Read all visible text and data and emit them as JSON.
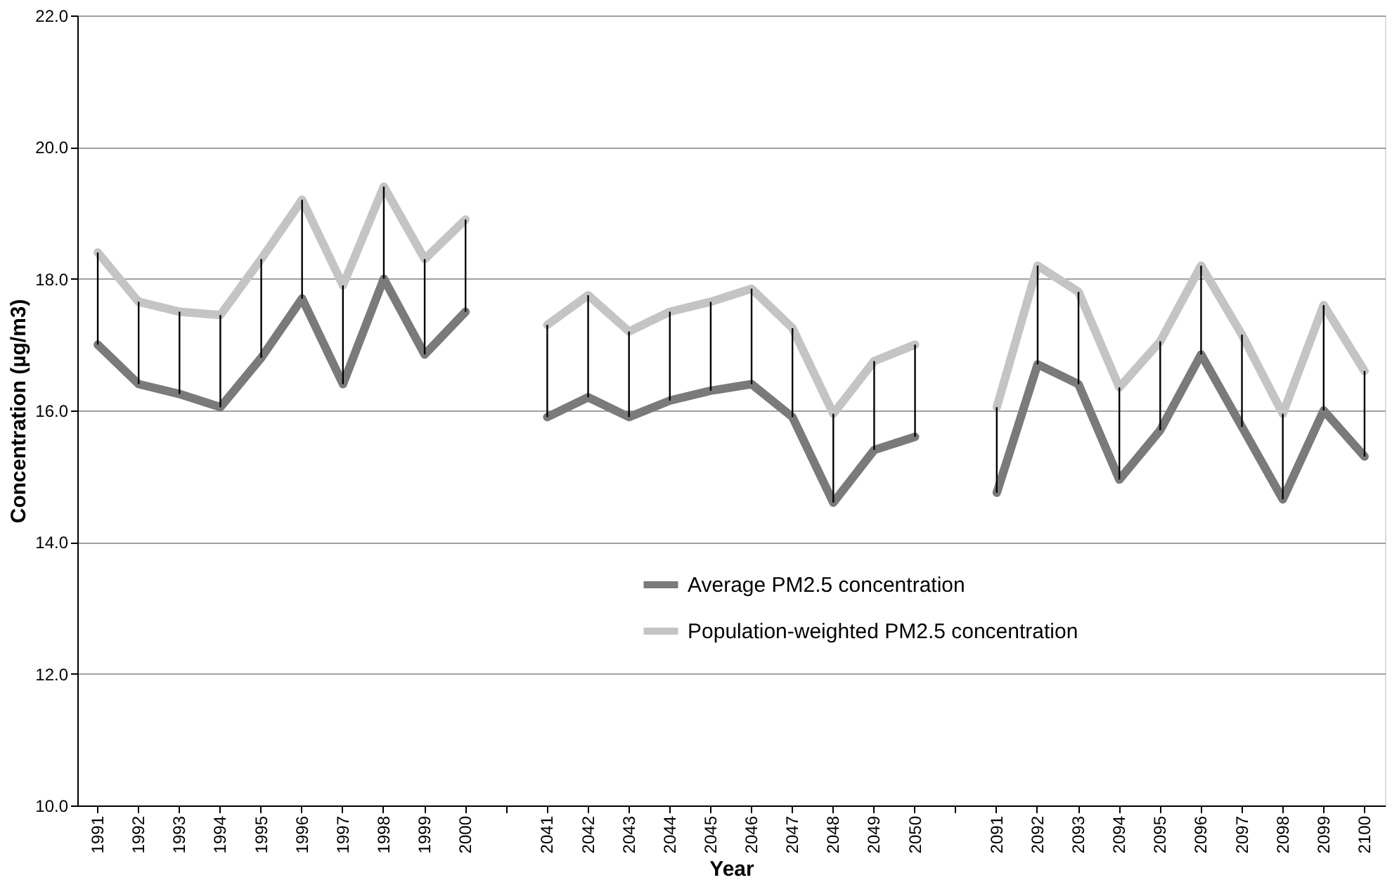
{
  "chart_data": {
    "type": "line",
    "xlabel": "Year",
    "ylabel": "Concentration (µg/m3)",
    "categories": [
      "1991",
      "1992",
      "1993",
      "1994",
      "1995",
      "1996",
      "1997",
      "1998",
      "1999",
      "2000",
      null,
      "2041",
      "2042",
      "2043",
      "2044",
      "2045",
      "2046",
      "2047",
      "2048",
      "2049",
      "2050",
      null,
      "2091",
      "2092",
      "2093",
      "2094",
      "2095",
      "2096",
      "2097",
      "2098",
      "2099",
      "2100"
    ],
    "series": [
      {
        "name": "Average PM2.5 concentration",
        "color": "#7a7a7a",
        "values": [
          17.0,
          16.4,
          16.25,
          16.05,
          16.8,
          17.7,
          16.4,
          18.0,
          16.85,
          17.5,
          null,
          15.9,
          16.2,
          15.9,
          16.15,
          16.3,
          16.4,
          15.9,
          14.6,
          15.4,
          15.6,
          null,
          14.75,
          16.7,
          16.4,
          14.95,
          15.7,
          16.85,
          15.75,
          14.65,
          16.0,
          15.3
        ]
      },
      {
        "name": "Population-weighted PM2.5 concentration",
        "color": "#c3c4c3",
        "values": [
          18.4,
          17.65,
          17.5,
          17.45,
          18.3,
          19.2,
          17.9,
          19.4,
          18.3,
          18.9,
          null,
          17.3,
          17.75,
          17.2,
          17.5,
          17.65,
          17.85,
          17.25,
          15.95,
          16.75,
          17.0,
          null,
          16.05,
          18.2,
          17.8,
          16.35,
          17.05,
          18.2,
          17.15,
          15.95,
          17.6,
          16.6
        ],
        "errors": [
          [
            17.0,
            18.4
          ],
          [
            16.4,
            17.65
          ],
          [
            16.25,
            17.5
          ],
          [
            16.05,
            17.45
          ],
          [
            16.8,
            18.3
          ],
          [
            17.7,
            19.2
          ],
          [
            16.4,
            17.9
          ],
          [
            18.0,
            19.4
          ],
          [
            16.85,
            18.3
          ],
          [
            17.5,
            18.9
          ],
          null,
          [
            15.9,
            17.3
          ],
          [
            16.2,
            17.75
          ],
          [
            15.9,
            17.2
          ],
          [
            16.15,
            17.5
          ],
          [
            16.3,
            17.65
          ],
          [
            16.4,
            17.85
          ],
          [
            15.9,
            17.25
          ],
          [
            14.6,
            15.95
          ],
          [
            15.4,
            16.75
          ],
          [
            15.6,
            17.0
          ],
          null,
          [
            14.75,
            16.05
          ],
          [
            16.7,
            18.2
          ],
          [
            16.4,
            17.8
          ],
          [
            14.95,
            16.35
          ],
          [
            15.7,
            17.05
          ],
          [
            16.85,
            18.2
          ],
          [
            15.75,
            17.15
          ],
          [
            14.65,
            15.95
          ],
          [
            16.0,
            17.6
          ],
          [
            15.3,
            16.6
          ]
        ]
      }
    ],
    "ylim": [
      10,
      22
    ],
    "yticks": [
      {
        "value": 10,
        "label": "10.0"
      },
      {
        "value": 12,
        "label": "12.0"
      },
      {
        "value": 14,
        "label": "14.0"
      },
      {
        "value": 16,
        "label": "16.0"
      },
      {
        "value": 18,
        "label": "18.0"
      },
      {
        "value": 20,
        "label": "20.0"
      },
      {
        "value": 22,
        "label": "22.0"
      }
    ],
    "grid": "y",
    "legend": "bottom",
    "marker": "none",
    "line_style": "solid"
  }
}
